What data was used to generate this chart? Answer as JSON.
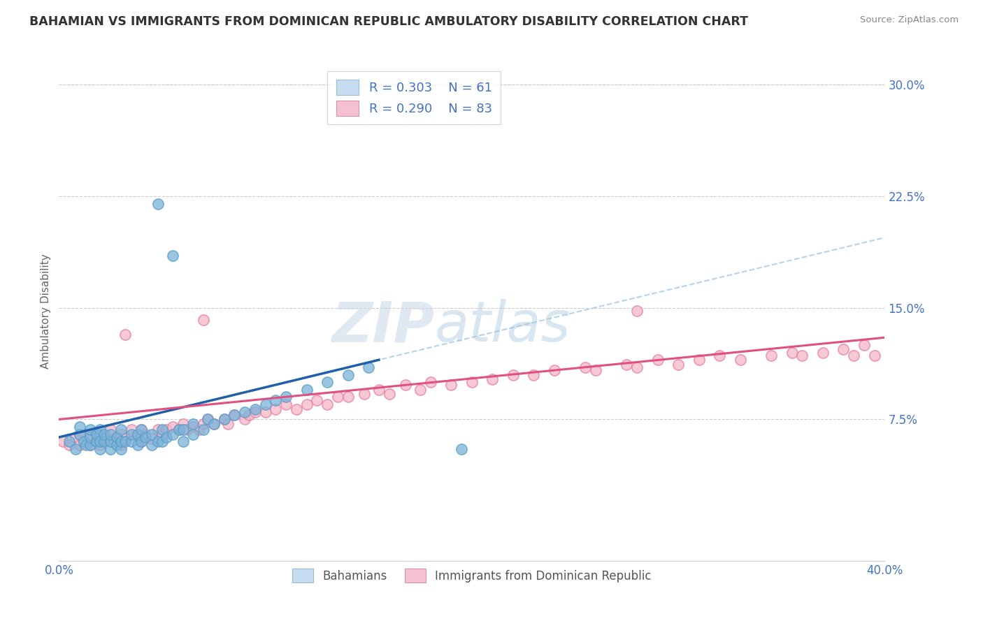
{
  "title": "BAHAMIAN VS IMMIGRANTS FROM DOMINICAN REPUBLIC AMBULATORY DISABILITY CORRELATION CHART",
  "source": "Source: ZipAtlas.com",
  "ylabel": "Ambulatory Disability",
  "xmin": 0.0,
  "xmax": 0.4,
  "ymin": -0.02,
  "ymax": 0.315,
  "R_blue": 0.303,
  "N_blue": 61,
  "R_pink": 0.29,
  "N_pink": 83,
  "blue_marker_color": "#7ab3d9",
  "blue_marker_edge": "#5b9ec9",
  "pink_marker_color": "#f5b8c8",
  "pink_marker_edge": "#e87fa0",
  "trendline_blue_color": "#2060a8",
  "trendline_pink_color": "#e05080",
  "dashed_line_color": "#a8cce8",
  "watermark_zip": "ZIP",
  "watermark_atlas": "atlas",
  "title_color": "#333333",
  "axis_label_color": "#4472c4",
  "tick_label_color": "#4472c4",
  "grid_color": "#cccccc",
  "ytick_vals": [
    0.075,
    0.15,
    0.225,
    0.3
  ],
  "ytick_labels": [
    "7.5%",
    "15.0%",
    "22.5%",
    "30.0%"
  ],
  "blue_x": [
    0.005,
    0.008,
    0.01,
    0.01,
    0.012,
    0.013,
    0.015,
    0.015,
    0.015,
    0.018,
    0.018,
    0.02,
    0.02,
    0.02,
    0.022,
    0.022,
    0.025,
    0.025,
    0.025,
    0.028,
    0.028,
    0.03,
    0.03,
    0.03,
    0.032,
    0.035,
    0.035,
    0.038,
    0.038,
    0.04,
    0.04,
    0.042,
    0.045,
    0.045,
    0.048,
    0.05,
    0.05,
    0.052,
    0.055,
    0.058,
    0.06,
    0.06,
    0.065,
    0.065,
    0.07,
    0.072,
    0.075,
    0.08,
    0.085,
    0.09,
    0.095,
    0.1,
    0.105,
    0.11,
    0.12,
    0.13,
    0.14,
    0.15,
    0.048,
    0.055,
    0.195
  ],
  "blue_y": [
    0.06,
    0.055,
    0.065,
    0.07,
    0.06,
    0.058,
    0.058,
    0.063,
    0.068,
    0.06,
    0.065,
    0.055,
    0.06,
    0.068,
    0.06,
    0.065,
    0.055,
    0.06,
    0.065,
    0.058,
    0.063,
    0.055,
    0.06,
    0.068,
    0.06,
    0.06,
    0.065,
    0.058,
    0.065,
    0.06,
    0.068,
    0.063,
    0.058,
    0.065,
    0.06,
    0.06,
    0.068,
    0.063,
    0.065,
    0.068,
    0.06,
    0.068,
    0.065,
    0.072,
    0.068,
    0.075,
    0.072,
    0.075,
    0.078,
    0.08,
    0.082,
    0.085,
    0.088,
    0.09,
    0.095,
    0.1,
    0.105,
    0.11,
    0.22,
    0.185,
    0.055
  ],
  "pink_x": [
    0.002,
    0.005,
    0.008,
    0.01,
    0.01,
    0.012,
    0.015,
    0.015,
    0.018,
    0.02,
    0.02,
    0.022,
    0.025,
    0.025,
    0.028,
    0.03,
    0.03,
    0.032,
    0.035,
    0.038,
    0.04,
    0.04,
    0.042,
    0.045,
    0.048,
    0.05,
    0.052,
    0.055,
    0.058,
    0.06,
    0.062,
    0.065,
    0.068,
    0.07,
    0.072,
    0.075,
    0.08,
    0.082,
    0.085,
    0.09,
    0.092,
    0.095,
    0.1,
    0.105,
    0.11,
    0.115,
    0.12,
    0.125,
    0.13,
    0.135,
    0.14,
    0.148,
    0.155,
    0.16,
    0.168,
    0.175,
    0.18,
    0.19,
    0.2,
    0.21,
    0.22,
    0.23,
    0.24,
    0.255,
    0.26,
    0.275,
    0.28,
    0.29,
    0.3,
    0.31,
    0.32,
    0.33,
    0.345,
    0.355,
    0.36,
    0.37,
    0.38,
    0.385,
    0.39,
    0.395,
    0.032,
    0.07,
    0.28
  ],
  "pink_y": [
    0.06,
    0.058,
    0.063,
    0.058,
    0.065,
    0.06,
    0.058,
    0.065,
    0.06,
    0.058,
    0.065,
    0.062,
    0.06,
    0.068,
    0.063,
    0.058,
    0.065,
    0.062,
    0.068,
    0.065,
    0.06,
    0.068,
    0.065,
    0.062,
    0.068,
    0.065,
    0.068,
    0.07,
    0.068,
    0.072,
    0.068,
    0.07,
    0.068,
    0.072,
    0.075,
    0.072,
    0.075,
    0.072,
    0.078,
    0.075,
    0.078,
    0.08,
    0.08,
    0.082,
    0.085,
    0.082,
    0.085,
    0.088,
    0.085,
    0.09,
    0.09,
    0.092,
    0.095,
    0.092,
    0.098,
    0.095,
    0.1,
    0.098,
    0.1,
    0.102,
    0.105,
    0.105,
    0.108,
    0.11,
    0.108,
    0.112,
    0.11,
    0.115,
    0.112,
    0.115,
    0.118,
    0.115,
    0.118,
    0.12,
    0.118,
    0.12,
    0.122,
    0.118,
    0.125,
    0.118,
    0.132,
    0.142,
    0.148
  ]
}
